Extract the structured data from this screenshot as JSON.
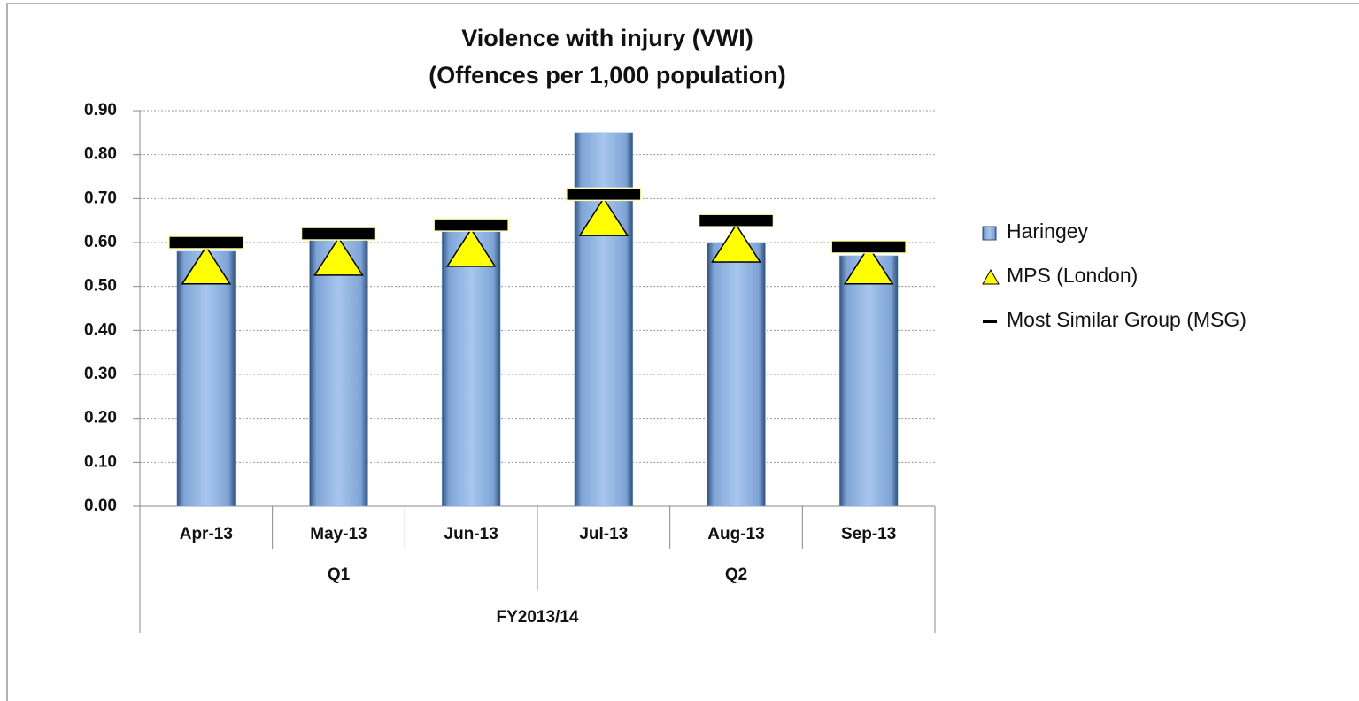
{
  "chart_data": {
    "type": "bar",
    "title": "Violence with  injury (VWI)",
    "subtitle": "(Offences per 1,000 population)",
    "categories": [
      "Apr-13",
      "May-13",
      "Jun-13",
      "Jul-13",
      "Aug-13",
      "Sep-13"
    ],
    "quarters": [
      "Q1",
      "Q2"
    ],
    "fiscal_year": "FY2013/14",
    "series": [
      {
        "name": "Haringey",
        "color": "#8db3e2",
        "marker": "bar",
        "values": [
          0.58,
          0.61,
          0.63,
          0.85,
          0.6,
          0.57
        ]
      },
      {
        "name": "MPS (London)",
        "color": "#ffff00",
        "marker": "triangle",
        "values": [
          0.54,
          0.56,
          0.58,
          0.65,
          0.59,
          0.54
        ]
      },
      {
        "name": "Most Similar Group (MSG)",
        "color": "#000000",
        "marker": "dash",
        "values": [
          0.6,
          0.62,
          0.64,
          0.71,
          0.65,
          0.59
        ]
      }
    ],
    "ylim": [
      0,
      0.9
    ],
    "yticks": [
      {
        "value": 0,
        "label": "0.00"
      },
      {
        "value": 0.1,
        "label": "0.10"
      },
      {
        "value": 0.2,
        "label": "0.20"
      },
      {
        "value": 0.3,
        "label": "0.30"
      },
      {
        "value": 0.4,
        "label": "0.40"
      },
      {
        "value": 0.5,
        "label": "0.50"
      },
      {
        "value": 0.6,
        "label": "0.60"
      },
      {
        "value": 0.7,
        "label": "0.70"
      },
      {
        "value": 0.8,
        "label": "0.80"
      },
      {
        "value": 0.9,
        "label": "0.90"
      }
    ],
    "grid": true
  }
}
